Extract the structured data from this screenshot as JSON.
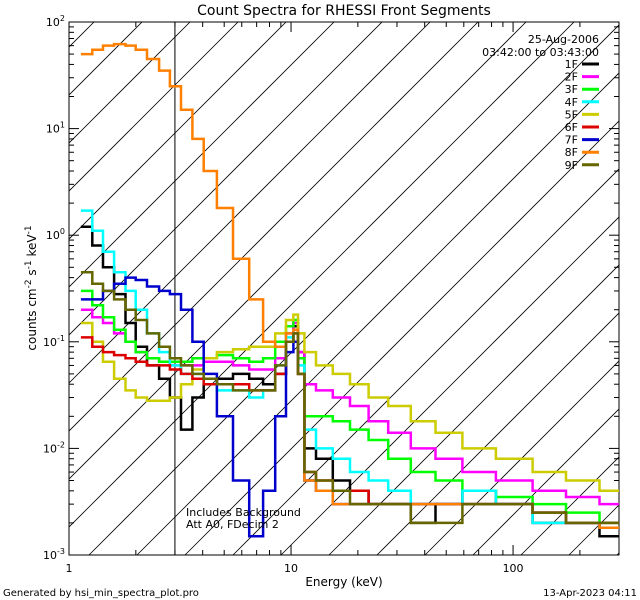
{
  "chart_data": {
    "type": "line",
    "title": "Count Spectra for RHESSI Front Segments",
    "xlabel": "Energy (keV)",
    "ylabel": {
      "base": "counts cm",
      "exp1": "-2",
      "mid1": " s",
      "exp2": "-1",
      "mid2": " keV",
      "exp3": "-1"
    },
    "xscale": "log",
    "yscale": "log",
    "xlim": [
      1,
      300
    ],
    "ylim": [
      0.001,
      100
    ],
    "xticks": [
      {
        "v": 1,
        "label": "1"
      },
      {
        "v": 10,
        "label": "10"
      },
      {
        "v": 100,
        "label": "100"
      }
    ],
    "yticks": [
      {
        "v": 100,
        "base": "10",
        "exp": "2"
      },
      {
        "v": 10,
        "base": "10",
        "exp": "1"
      },
      {
        "v": 1,
        "base": "10",
        "exp": "0"
      },
      {
        "v": 0.1,
        "base": "10",
        "exp": "-1"
      },
      {
        "v": 0.01,
        "base": "10",
        "exp": "-2"
      },
      {
        "v": 0.001,
        "base": "10",
        "exp": "-3"
      }
    ],
    "excluded_region_keV": [
      1,
      3
    ],
    "date": "25-Aug-2006",
    "time_range": "03:42:00 to 03:43:00",
    "notes": [
      "Includes Background",
      "Att A0, FDecim 2"
    ],
    "series": [
      {
        "name": "1F",
        "color": "#000000",
        "x": [
          1.2,
          1.35,
          1.5,
          1.7,
          1.9,
          2.1,
          2.4,
          2.7,
          3,
          3.4,
          3.8,
          4.3,
          5,
          6,
          7,
          8,
          9,
          10,
          10.5,
          11,
          12,
          14,
          17,
          20,
          25,
          30,
          40,
          50,
          70,
          100,
          150,
          200,
          300
        ],
        "y": [
          1.2,
          0.8,
          0.5,
          0.28,
          0.15,
          0.09,
          0.06,
          0.045,
          0.03,
          0.015,
          0.03,
          0.04,
          0.045,
          0.05,
          0.045,
          0.04,
          0.05,
          0.1,
          0.14,
          0.08,
          0.01,
          0.008,
          0.005,
          0.004,
          0.003,
          0.003,
          0.002,
          0.003,
          0.004,
          0.003,
          0.002,
          0.002,
          0.0015
        ]
      },
      {
        "name": "2F",
        "color": "#ff00ff",
        "x": [
          1.2,
          1.35,
          1.5,
          1.7,
          1.9,
          2.1,
          2.4,
          2.7,
          3,
          3.4,
          3.8,
          4.3,
          5,
          6,
          7,
          8,
          9,
          10,
          10.5,
          11,
          12,
          14,
          17,
          20,
          25,
          30,
          40,
          50,
          70,
          100,
          150,
          200,
          300
        ],
        "y": [
          0.2,
          0.17,
          0.15,
          0.12,
          0.1,
          0.08,
          0.07,
          0.065,
          0.06,
          0.06,
          0.06,
          0.065,
          0.065,
          0.06,
          0.055,
          0.055,
          0.07,
          0.12,
          0.15,
          0.08,
          0.04,
          0.035,
          0.03,
          0.025,
          0.018,
          0.014,
          0.01,
          0.008,
          0.006,
          0.005,
          0.004,
          0.0035,
          0.003
        ]
      },
      {
        "name": "3F",
        "color": "#00ff00",
        "x": [
          1.2,
          1.35,
          1.5,
          1.7,
          1.9,
          2.1,
          2.4,
          2.7,
          3,
          3.4,
          3.8,
          4.3,
          5,
          6,
          7,
          8,
          9,
          10,
          10.5,
          11,
          12,
          14,
          17,
          20,
          25,
          30,
          40,
          50,
          70,
          100,
          150,
          200,
          300
        ],
        "y": [
          0.3,
          0.22,
          0.17,
          0.13,
          0.1,
          0.08,
          0.07,
          0.065,
          0.065,
          0.065,
          0.07,
          0.07,
          0.075,
          0.07,
          0.065,
          0.07,
          0.1,
          0.14,
          0.16,
          0.07,
          0.02,
          0.02,
          0.018,
          0.015,
          0.012,
          0.008,
          0.006,
          0.005,
          0.004,
          0.0035,
          0.003,
          0.0025,
          0.002
        ]
      },
      {
        "name": "4F",
        "color": "#00ffff",
        "x": [
          1.2,
          1.35,
          1.5,
          1.7,
          1.9,
          2.1,
          2.4,
          2.7,
          3,
          3.4,
          3.8,
          4.3,
          5,
          6,
          7,
          8,
          9,
          10,
          10.5,
          11,
          12,
          14,
          17,
          20,
          25,
          30,
          40,
          50,
          70,
          100,
          150,
          200,
          300
        ],
        "y": [
          1.7,
          1.1,
          0.7,
          0.45,
          0.3,
          0.2,
          0.12,
          0.08,
          0.06,
          0.05,
          0.05,
          0.04,
          0.035,
          0.035,
          0.03,
          0.035,
          0.06,
          0.11,
          0.13,
          0.06,
          0.015,
          0.01,
          0.008,
          0.006,
          0.005,
          0.004,
          0.003,
          0.003,
          0.004,
          0.003,
          0.002,
          0.002,
          0.0018
        ]
      },
      {
        "name": "5F",
        "color": "#cccc00",
        "x": [
          1.2,
          1.35,
          1.5,
          1.7,
          1.9,
          2.1,
          2.4,
          2.7,
          3,
          3.4,
          3.8,
          4.3,
          5,
          6,
          7,
          8,
          9,
          10,
          10.5,
          11,
          12,
          14,
          17,
          20,
          25,
          30,
          40,
          50,
          70,
          100,
          150,
          200,
          300
        ],
        "y": [
          0.15,
          0.1,
          0.065,
          0.045,
          0.035,
          0.03,
          0.028,
          0.028,
          0.03,
          0.04,
          0.055,
          0.07,
          0.08,
          0.085,
          0.09,
          0.09,
          0.12,
          0.16,
          0.18,
          0.12,
          0.08,
          0.06,
          0.05,
          0.04,
          0.03,
          0.025,
          0.018,
          0.014,
          0.01,
          0.008,
          0.006,
          0.005,
          0.004
        ]
      },
      {
        "name": "6F",
        "color": "#dd0000",
        "x": [
          1.2,
          1.35,
          1.5,
          1.7,
          1.9,
          2.1,
          2.4,
          2.7,
          3,
          3.4,
          3.8,
          4.3,
          5,
          6,
          7,
          8,
          9,
          10,
          10.5,
          11,
          12,
          14,
          17,
          20,
          25,
          30,
          40,
          50,
          70,
          100,
          150,
          200,
          300
        ],
        "y": [
          0.11,
          0.09,
          0.08,
          0.075,
          0.07,
          0.065,
          0.06,
          0.06,
          0.055,
          0.05,
          0.045,
          0.04,
          0.04,
          0.04,
          0.035,
          0.035,
          0.05,
          0.1,
          0.12,
          0.05,
          0.006,
          0.005,
          0.004,
          0.004,
          0.003,
          0.003,
          0.003,
          0.003,
          0.003,
          0.003,
          0.0025,
          0.002,
          0.002
        ]
      },
      {
        "name": "7F",
        "color": "#0000cc",
        "x": [
          1.2,
          1.35,
          1.5,
          1.7,
          1.9,
          2.1,
          2.4,
          2.7,
          3,
          3.4,
          3.8,
          4.3,
          5,
          6,
          7,
          8,
          9,
          10,
          10.5,
          11,
          12,
          14,
          17,
          20,
          25,
          30,
          40,
          50,
          70,
          100,
          150,
          200,
          300
        ],
        "y": [
          0.25,
          0.25,
          0.3,
          0.35,
          0.4,
          0.38,
          0.33,
          0.3,
          0.28,
          0.2,
          0.1,
          0.05,
          0.02,
          0.005,
          0.0015,
          0.004,
          0.02,
          0.08,
          0.1,
          0.05,
          0.005,
          0.004,
          0.003,
          0.003,
          0.003,
          0.003,
          0.003,
          0.003,
          0.003,
          0.003,
          0.0025,
          0.002,
          0.0018
        ]
      },
      {
        "name": "8F",
        "color": "#ff8000",
        "x": [
          1.2,
          1.35,
          1.5,
          1.7,
          1.9,
          2.1,
          2.4,
          2.7,
          3,
          3.4,
          3.8,
          4.3,
          5,
          6,
          7,
          8,
          9,
          10,
          10.5,
          11,
          12,
          14,
          17,
          20,
          25,
          30,
          40,
          50,
          70,
          100,
          150,
          200,
          300
        ],
        "y": [
          50,
          55,
          60,
          62,
          60,
          55,
          45,
          35,
          25,
          15,
          8,
          4,
          1.8,
          0.6,
          0.25,
          0.1,
          0.09,
          0.12,
          0.13,
          0.05,
          0.005,
          0.004,
          0.003,
          0.003,
          0.003,
          0.003,
          0.003,
          0.003,
          0.003,
          0.003,
          0.0025,
          0.002,
          0.0018
        ]
      },
      {
        "name": "9F",
        "color": "#666600",
        "x": [
          1.2,
          1.35,
          1.5,
          1.7,
          1.9,
          2.1,
          2.4,
          2.7,
          3,
          3.4,
          3.8,
          4.3,
          5,
          6,
          7,
          8,
          9,
          10,
          10.5,
          11,
          12,
          14,
          17,
          20,
          25,
          30,
          40,
          50,
          70,
          100,
          150,
          200,
          300
        ],
        "y": [
          0.45,
          0.35,
          0.3,
          0.25,
          0.2,
          0.16,
          0.12,
          0.09,
          0.07,
          0.06,
          0.05,
          0.045,
          0.04,
          0.035,
          0.035,
          0.035,
          0.06,
          0.1,
          0.12,
          0.05,
          0.006,
          0.005,
          0.004,
          0.003,
          0.003,
          0.003,
          0.002,
          0.002,
          0.003,
          0.003,
          0.0025,
          0.002,
          0.002
        ]
      }
    ]
  },
  "footer": {
    "generator": "Generated by hsi_min_spectra_plot.pro",
    "timestamp": "13-Apr-2023 04:11"
  }
}
